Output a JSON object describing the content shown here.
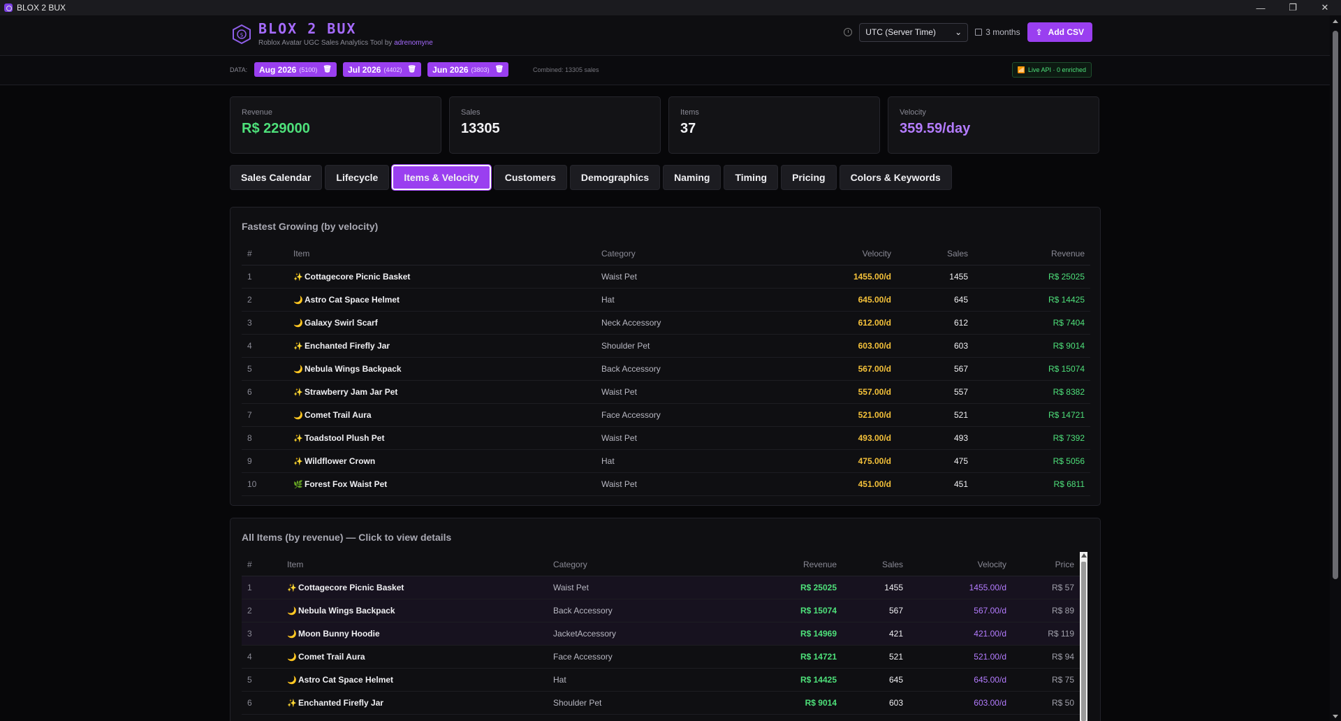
{
  "window": {
    "title": "BLOX 2 BUX",
    "controls": [
      "—",
      "❐",
      "✕"
    ]
  },
  "header": {
    "brand": "BLOX 2 BUX",
    "subtitle": "Roblox Avatar UGC Sales Analytics Tool by",
    "author": "adrenomyne",
    "timezone": "UTC (Server Time)",
    "range": "3 months",
    "add_csv": "Add CSV"
  },
  "databar": {
    "label": "DATA:",
    "chips": [
      {
        "label": "Aug 2026",
        "count": "(5100)"
      },
      {
        "label": "Jul 2026",
        "count": "(4402)"
      },
      {
        "label": "Jun 2026",
        "count": "(3803)"
      }
    ],
    "combined": "Combined: 13305 sales",
    "live": "Live API · 0 enriched"
  },
  "stats": [
    {
      "label": "Revenue",
      "value": "R$ 229000"
    },
    {
      "label": "Sales",
      "value": "13305"
    },
    {
      "label": "Items",
      "value": "37"
    },
    {
      "label": "Velocity",
      "value": "359.59/day"
    }
  ],
  "tabs": [
    "Sales Calendar",
    "Lifecycle",
    "Items & Velocity",
    "Customers",
    "Demographics",
    "Naming",
    "Timing",
    "Pricing",
    "Colors & Keywords"
  ],
  "active_tab": "Items & Velocity",
  "fastest": {
    "title": "Fastest Growing (by velocity)",
    "headers": [
      "#",
      "Item",
      "Category",
      "Velocity",
      "Sales",
      "Revenue"
    ],
    "rows": [
      {
        "n": "1",
        "icon": "✨",
        "item": "Cottagecore Picnic Basket",
        "category": "Waist Pet",
        "velocity": "1455.00/d",
        "sales": "1455",
        "revenue": "R$ 25025"
      },
      {
        "n": "2",
        "icon": "🌙",
        "item": "Astro Cat Space Helmet",
        "category": "Hat",
        "velocity": "645.00/d",
        "sales": "645",
        "revenue": "R$ 14425"
      },
      {
        "n": "3",
        "icon": "🌙",
        "item": "Galaxy Swirl Scarf",
        "category": "Neck Accessory",
        "velocity": "612.00/d",
        "sales": "612",
        "revenue": "R$ 7404"
      },
      {
        "n": "4",
        "icon": "✨",
        "item": "Enchanted Firefly Jar",
        "category": "Shoulder Pet",
        "velocity": "603.00/d",
        "sales": "603",
        "revenue": "R$ 9014"
      },
      {
        "n": "5",
        "icon": "🌙",
        "item": "Nebula Wings Backpack",
        "category": "Back Accessory",
        "velocity": "567.00/d",
        "sales": "567",
        "revenue": "R$ 15074"
      },
      {
        "n": "6",
        "icon": "✨",
        "item": "Strawberry Jam Jar Pet",
        "category": "Waist Pet",
        "velocity": "557.00/d",
        "sales": "557",
        "revenue": "R$ 8382"
      },
      {
        "n": "7",
        "icon": "🌙",
        "item": "Comet Trail Aura",
        "category": "Face Accessory",
        "velocity": "521.00/d",
        "sales": "521",
        "revenue": "R$ 14721"
      },
      {
        "n": "8",
        "icon": "✨",
        "item": "Toadstool Plush Pet",
        "category": "Waist Pet",
        "velocity": "493.00/d",
        "sales": "493",
        "revenue": "R$ 7392"
      },
      {
        "n": "9",
        "icon": "✨",
        "item": "Wildflower Crown",
        "category": "Hat",
        "velocity": "475.00/d",
        "sales": "475",
        "revenue": "R$ 5056"
      },
      {
        "n": "10",
        "icon": "🌿",
        "item": "Forest Fox Waist Pet",
        "category": "Waist Pet",
        "velocity": "451.00/d",
        "sales": "451",
        "revenue": "R$ 6811"
      }
    ]
  },
  "all_items": {
    "title": "All Items (by revenue) — Click to view details",
    "headers": [
      "#",
      "Item",
      "Category",
      "Revenue",
      "Sales",
      "Velocity",
      "Price"
    ],
    "rows": [
      {
        "n": "1",
        "icon": "✨",
        "item": "Cottagecore Picnic Basket",
        "category": "Waist Pet",
        "revenue": "R$ 25025",
        "sales": "1455",
        "velocity": "1455.00/d",
        "price": "R$ 57"
      },
      {
        "n": "2",
        "icon": "🌙",
        "item": "Nebula Wings Backpack",
        "category": "Back Accessory",
        "revenue": "R$ 15074",
        "sales": "567",
        "velocity": "567.00/d",
        "price": "R$ 89"
      },
      {
        "n": "3",
        "icon": "🌙",
        "item": "Moon Bunny Hoodie",
        "category": "JacketAccessory",
        "revenue": "R$ 14969",
        "sales": "421",
        "velocity": "421.00/d",
        "price": "R$ 119"
      },
      {
        "n": "4",
        "icon": "🌙",
        "item": "Comet Trail Aura",
        "category": "Face Accessory",
        "revenue": "R$ 14721",
        "sales": "521",
        "velocity": "521.00/d",
        "price": "R$ 94"
      },
      {
        "n": "5",
        "icon": "🌙",
        "item": "Astro Cat Space Helmet",
        "category": "Hat",
        "revenue": "R$ 14425",
        "sales": "645",
        "velocity": "645.00/d",
        "price": "R$ 75"
      },
      {
        "n": "6",
        "icon": "✨",
        "item": "Enchanted Firefly Jar",
        "category": "Shoulder Pet",
        "revenue": "R$ 9014",
        "sales": "603",
        "velocity": "603.00/d",
        "price": "R$ 50"
      }
    ]
  }
}
